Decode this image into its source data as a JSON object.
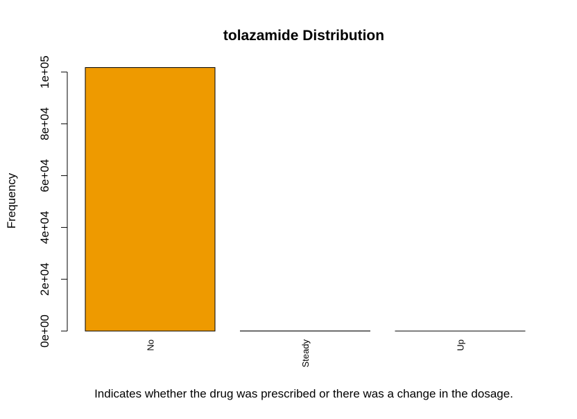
{
  "chart_data": {
    "type": "bar",
    "title": "tolazamide Distribution",
    "xlabel": "Indicates whether the drug was prescribed or there was a change in the dosage.",
    "ylabel": "Frequency",
    "categories": [
      "No",
      "Steady",
      "Up"
    ],
    "values": [
      101727,
      38,
      1
    ],
    "ylim": [
      0,
      100000
    ],
    "yticks": [
      0,
      20000,
      40000,
      60000,
      80000,
      100000
    ],
    "ytick_labels": [
      "0e+00",
      "2e+04",
      "4e+04",
      "6e+04",
      "8e+04",
      "1e+05"
    ],
    "bar_color": "#EE9A00",
    "bar_outline": "#000000",
    "grid": false,
    "legend": "none"
  }
}
